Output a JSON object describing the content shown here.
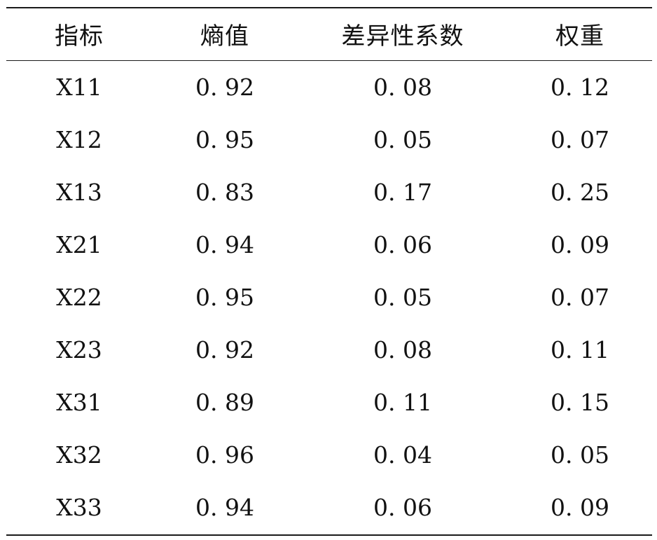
{
  "table": {
    "headers": [
      "指标",
      "熵值",
      "差异性系数",
      "权重"
    ],
    "rows": [
      [
        "X11",
        "0. 92",
        "0. 08",
        "0. 12"
      ],
      [
        "X12",
        "0. 95",
        "0. 05",
        "0. 07"
      ],
      [
        "X13",
        "0. 83",
        "0. 17",
        "0. 25"
      ],
      [
        "X21",
        "0. 94",
        "0. 06",
        "0. 09"
      ],
      [
        "X22",
        "0. 95",
        "0. 05",
        "0. 07"
      ],
      [
        "X23",
        "0. 92",
        "0. 08",
        "0. 11"
      ],
      [
        "X31",
        "0. 89",
        "0. 11",
        "0. 15"
      ],
      [
        "X32",
        "0. 96",
        "0. 04",
        "0. 05"
      ],
      [
        "X33",
        "0. 94",
        "0. 06",
        "0. 09"
      ]
    ]
  }
}
